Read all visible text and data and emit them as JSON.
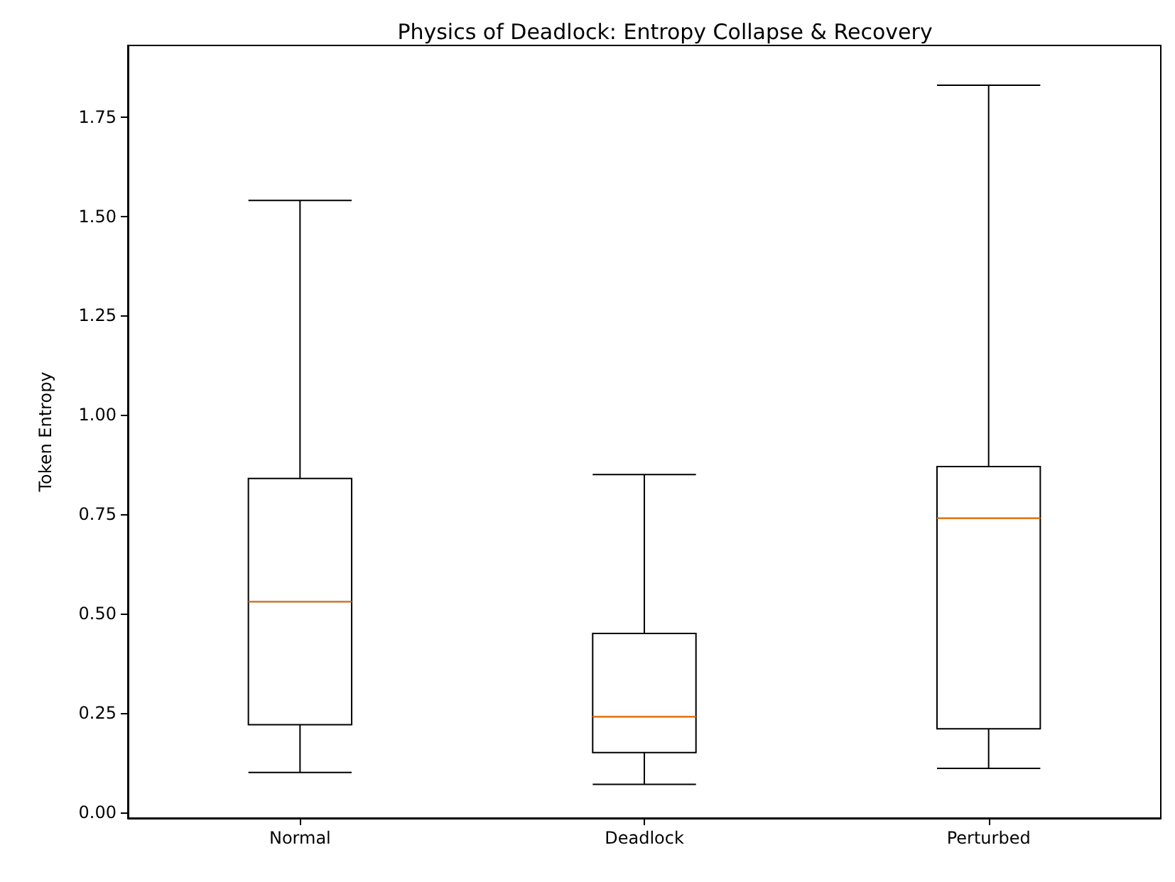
{
  "chart_data": {
    "type": "box",
    "title": "Physics of Deadlock: Entropy Collapse & Recovery",
    "ylabel": "Token Entropy",
    "categories": [
      "Normal",
      "Deadlock",
      "Perturbed"
    ],
    "series": [
      {
        "color": "#000000",
        "boxes": [
          {
            "low": 0.1,
            "q1": 0.22,
            "median": 0.53,
            "q3": 0.84,
            "high": 1.54
          },
          {
            "low": 0.07,
            "q1": 0.15,
            "median": 0.24,
            "q3": 0.45,
            "high": 0.85
          },
          {
            "low": 0.11,
            "q1": 0.21,
            "median": 0.74,
            "q3": 0.87,
            "high": 1.83
          }
        ]
      }
    ],
    "ylim": [
      -0.015,
      1.93
    ],
    "yticks": [
      {
        "value": 0,
        "label": "0.00"
      },
      {
        "value": 0.25,
        "label": "0.25"
      },
      {
        "value": 0.5,
        "label": "0.50"
      },
      {
        "value": 0.75,
        "label": "0.75"
      },
      {
        "value": 1,
        "label": "1.00"
      },
      {
        "value": 1.25,
        "label": "1.25"
      },
      {
        "value": 1.5,
        "label": "1.50"
      },
      {
        "value": 1.75,
        "label": "1.75"
      }
    ],
    "grid": false
  }
}
